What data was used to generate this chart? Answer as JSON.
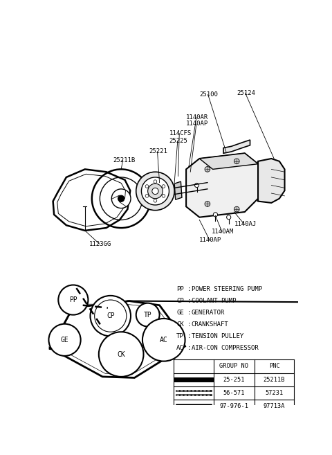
{
  "bg_color": "#ffffff",
  "fig_width": 4.8,
  "fig_height": 6.57,
  "dpi": 100,
  "legend_abbrevs": [
    [
      "PP",
      "POWER STEERING PUMP"
    ],
    [
      "CP",
      "COOLANT PUMP"
    ],
    [
      "GE",
      "GENERATOR"
    ],
    [
      "CK",
      "CRANKSHAFT"
    ],
    [
      "TP",
      "TENSION PULLEY"
    ],
    [
      "AC",
      "AIR-CON COMPRESSOR"
    ]
  ],
  "table_headers": [
    "",
    "GROUP NO",
    "PNC"
  ],
  "table_rows": [
    [
      "solid_thick",
      "25-251",
      "25211B"
    ],
    [
      "dashed_double",
      "56-571",
      "57231"
    ],
    [
      "double_solid",
      "97-976-1",
      "97713A"
    ]
  ]
}
